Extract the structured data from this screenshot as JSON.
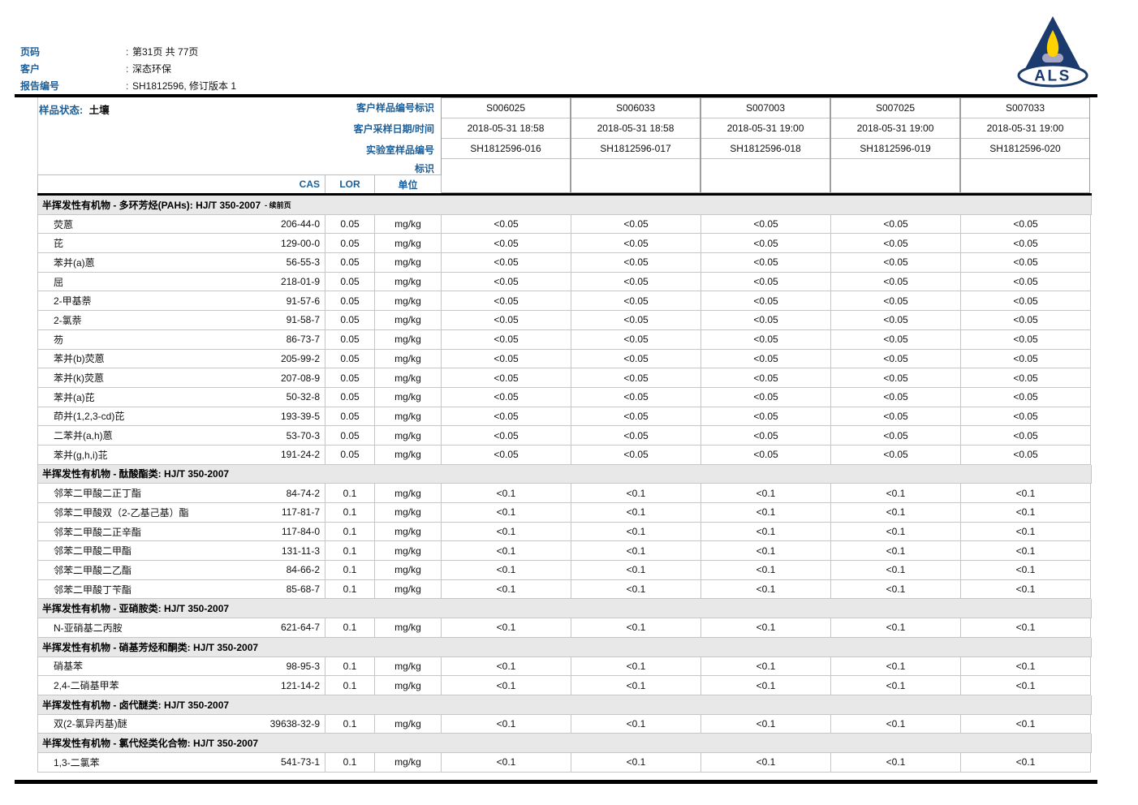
{
  "colors": {
    "accent_blue": "#1d5f96",
    "logo_navy": "#1b3a6e",
    "flame_yellow": "#ffd200",
    "burner_gray": "#a5a5c5",
    "section_bg": "#e8e8e8"
  },
  "page_header": {
    "separator": ":",
    "fields": [
      {
        "label": "页码",
        "value": "第31页 共 77页"
      },
      {
        "label": "客户",
        "value": "深态环保"
      },
      {
        "label": "报告编号",
        "value": "SH1812596, 修订版本 1"
      }
    ],
    "logo_text": "ALS"
  },
  "sample_info": {
    "status_label": "样品状态:",
    "status_value": "土壤",
    "row_labels": [
      "客户样品编号标识",
      "客户采样日期/时间",
      "实验室样品编号",
      "标识"
    ],
    "samples": [
      {
        "client_id": "S006025",
        "datetime": "2018-05-31 18:58",
        "lab_id": "SH1812596-016"
      },
      {
        "client_id": "S006033",
        "datetime": "2018-05-31 18:58",
        "lab_id": "SH1812596-017"
      },
      {
        "client_id": "S007003",
        "datetime": "2018-05-31 19:00",
        "lab_id": "SH1812596-018"
      },
      {
        "client_id": "S007025",
        "datetime": "2018-05-31 19:00",
        "lab_id": "SH1812596-019"
      },
      {
        "client_id": "S007033",
        "datetime": "2018-05-31 19:00",
        "lab_id": "SH1812596-020"
      }
    ]
  },
  "columns": {
    "cas": "CAS",
    "lor": "LOR",
    "unit": "单位"
  },
  "results": {
    "sections": [
      {
        "title": "半挥发性有机物 - 多环芳烃(PAHs): HJ/T 350-2007",
        "suffix": "- 续前页",
        "rows": [
          {
            "name": "荧蒽",
            "cas": "206-44-0",
            "lor": "0.05",
            "unit": "mg/kg",
            "values": [
              "<0.05",
              "<0.05",
              "<0.05",
              "<0.05",
              "<0.05"
            ]
          },
          {
            "name": "芘",
            "cas": "129-00-0",
            "lor": "0.05",
            "unit": "mg/kg",
            "values": [
              "<0.05",
              "<0.05",
              "<0.05",
              "<0.05",
              "<0.05"
            ]
          },
          {
            "name": "苯并(a)蒽",
            "cas": "56-55-3",
            "lor": "0.05",
            "unit": "mg/kg",
            "values": [
              "<0.05",
              "<0.05",
              "<0.05",
              "<0.05",
              "<0.05"
            ]
          },
          {
            "name": "屈",
            "cas": "218-01-9",
            "lor": "0.05",
            "unit": "mg/kg",
            "values": [
              "<0.05",
              "<0.05",
              "<0.05",
              "<0.05",
              "<0.05"
            ]
          },
          {
            "name": "2-甲基萘",
            "cas": "91-57-6",
            "lor": "0.05",
            "unit": "mg/kg",
            "values": [
              "<0.05",
              "<0.05",
              "<0.05",
              "<0.05",
              "<0.05"
            ]
          },
          {
            "name": "2-氯萘",
            "cas": "91-58-7",
            "lor": "0.05",
            "unit": "mg/kg",
            "values": [
              "<0.05",
              "<0.05",
              "<0.05",
              "<0.05",
              "<0.05"
            ]
          },
          {
            "name": "芴",
            "cas": "86-73-7",
            "lor": "0.05",
            "unit": "mg/kg",
            "values": [
              "<0.05",
              "<0.05",
              "<0.05",
              "<0.05",
              "<0.05"
            ]
          },
          {
            "name": "苯并(b)荧蒽",
            "cas": "205-99-2",
            "lor": "0.05",
            "unit": "mg/kg",
            "values": [
              "<0.05",
              "<0.05",
              "<0.05",
              "<0.05",
              "<0.05"
            ]
          },
          {
            "name": "苯并(k)荧蒽",
            "cas": "207-08-9",
            "lor": "0.05",
            "unit": "mg/kg",
            "values": [
              "<0.05",
              "<0.05",
              "<0.05",
              "<0.05",
              "<0.05"
            ]
          },
          {
            "name": "苯并(a)芘",
            "cas": "50-32-8",
            "lor": "0.05",
            "unit": "mg/kg",
            "values": [
              "<0.05",
              "<0.05",
              "<0.05",
              "<0.05",
              "<0.05"
            ]
          },
          {
            "name": "茚并(1,2,3-cd)芘",
            "cas": "193-39-5",
            "lor": "0.05",
            "unit": "mg/kg",
            "values": [
              "<0.05",
              "<0.05",
              "<0.05",
              "<0.05",
              "<0.05"
            ]
          },
          {
            "name": "二苯并(a,h)蒽",
            "cas": "53-70-3",
            "lor": "0.05",
            "unit": "mg/kg",
            "values": [
              "<0.05",
              "<0.05",
              "<0.05",
              "<0.05",
              "<0.05"
            ]
          },
          {
            "name": "苯并(g,h,i)苝",
            "cas": "191-24-2",
            "lor": "0.05",
            "unit": "mg/kg",
            "values": [
              "<0.05",
              "<0.05",
              "<0.05",
              "<0.05",
              "<0.05"
            ]
          }
        ]
      },
      {
        "title": "半挥发性有机物 - 酞酸酯类: HJ/T 350-2007",
        "suffix": "",
        "rows": [
          {
            "name": "邻苯二甲酸二正丁酯",
            "cas": "84-74-2",
            "lor": "0.1",
            "unit": "mg/kg",
            "values": [
              "<0.1",
              "<0.1",
              "<0.1",
              "<0.1",
              "<0.1"
            ]
          },
          {
            "name": "邻苯二甲酸双（2-乙基己基）酯",
            "cas": "117-81-7",
            "lor": "0.1",
            "unit": "mg/kg",
            "values": [
              "<0.1",
              "<0.1",
              "<0.1",
              "<0.1",
              "<0.1"
            ]
          },
          {
            "name": "邻苯二甲酸二正辛酯",
            "cas": "117-84-0",
            "lor": "0.1",
            "unit": "mg/kg",
            "values": [
              "<0.1",
              "<0.1",
              "<0.1",
              "<0.1",
              "<0.1"
            ]
          },
          {
            "name": "邻苯二甲酸二甲酯",
            "cas": "131-11-3",
            "lor": "0.1",
            "unit": "mg/kg",
            "values": [
              "<0.1",
              "<0.1",
              "<0.1",
              "<0.1",
              "<0.1"
            ]
          },
          {
            "name": "邻苯二甲酸二乙酯",
            "cas": "84-66-2",
            "lor": "0.1",
            "unit": "mg/kg",
            "values": [
              "<0.1",
              "<0.1",
              "<0.1",
              "<0.1",
              "<0.1"
            ]
          },
          {
            "name": "邻苯二甲酸丁苄酯",
            "cas": "85-68-7",
            "lor": "0.1",
            "unit": "mg/kg",
            "values": [
              "<0.1",
              "<0.1",
              "<0.1",
              "<0.1",
              "<0.1"
            ]
          }
        ]
      },
      {
        "title": "半挥发性有机物 - 亚硝胺类: HJ/T 350-2007",
        "suffix": "",
        "rows": [
          {
            "name": "N-亚硝基二丙胺",
            "cas": "621-64-7",
            "lor": "0.1",
            "unit": "mg/kg",
            "values": [
              "<0.1",
              "<0.1",
              "<0.1",
              "<0.1",
              "<0.1"
            ]
          }
        ]
      },
      {
        "title": "半挥发性有机物 - 硝基芳烃和酮类: HJ/T 350-2007",
        "suffix": "",
        "rows": [
          {
            "name": "硝基苯",
            "cas": "98-95-3",
            "lor": "0.1",
            "unit": "mg/kg",
            "values": [
              "<0.1",
              "<0.1",
              "<0.1",
              "<0.1",
              "<0.1"
            ]
          },
          {
            "name": "2,4-二硝基甲苯",
            "cas": "121-14-2",
            "lor": "0.1",
            "unit": "mg/kg",
            "values": [
              "<0.1",
              "<0.1",
              "<0.1",
              "<0.1",
              "<0.1"
            ]
          }
        ]
      },
      {
        "title": "半挥发性有机物 - 卤代醚类: HJ/T 350-2007",
        "suffix": "",
        "rows": [
          {
            "name": "双(2-氯异丙基)醚",
            "cas": "39638-32-9",
            "lor": "0.1",
            "unit": "mg/kg",
            "values": [
              "<0.1",
              "<0.1",
              "<0.1",
              "<0.1",
              "<0.1"
            ]
          }
        ]
      },
      {
        "title": "半挥发性有机物 - 氯代烃类化合物: HJ/T 350-2007",
        "suffix": "",
        "rows": [
          {
            "name": "1,3-二氯苯",
            "cas": "541-73-1",
            "lor": "0.1",
            "unit": "mg/kg",
            "values": [
              "<0.1",
              "<0.1",
              "<0.1",
              "<0.1",
              "<0.1"
            ]
          }
        ]
      }
    ]
  }
}
